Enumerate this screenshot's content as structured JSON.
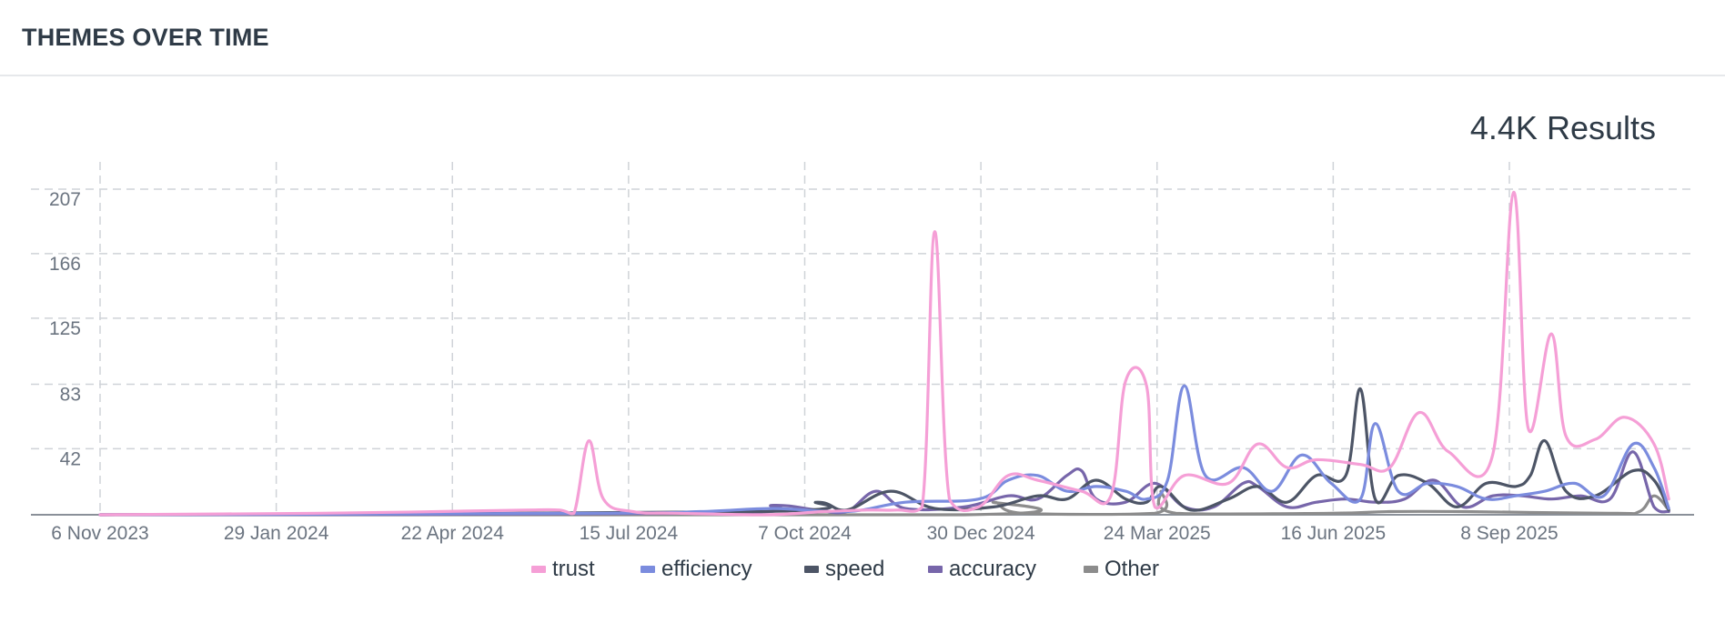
{
  "header": {
    "title": "THEMES OVER TIME"
  },
  "results": {
    "label": "4.4K Results"
  },
  "chart_data": {
    "type": "line",
    "title": "",
    "xlabel": "",
    "ylabel": "",
    "x_range": [
      "2023-10-30",
      "2025-12-15"
    ],
    "ylim": [
      0,
      207
    ],
    "y_ticks": [
      42,
      83,
      125,
      166,
      207
    ],
    "x_ticks": [
      {
        "label": "6 Nov 2023",
        "date": "2023-11-06"
      },
      {
        "label": "29 Jan 2024",
        "date": "2024-01-29"
      },
      {
        "label": "22 Apr 2024",
        "date": "2024-04-22"
      },
      {
        "label": "15 Jul 2024",
        "date": "2024-07-15"
      },
      {
        "label": "7 Oct 2024",
        "date": "2024-10-07"
      },
      {
        "label": "30 Dec 2024",
        "date": "2024-12-30"
      },
      {
        "label": "24 Mar 2025",
        "date": "2025-03-24"
      },
      {
        "label": "16 Jun 2025",
        "date": "2025-06-16"
      },
      {
        "label": "8 Sep 2025",
        "date": "2025-09-08"
      }
    ],
    "grid": true,
    "legend_position": "bottom-center",
    "series": [
      {
        "name": "trust",
        "color": "#f59fd6",
        "points": [
          [
            "2023-11-06",
            0
          ],
          [
            "2024-02-19",
            1
          ],
          [
            "2024-04-15",
            2
          ],
          [
            "2024-05-27",
            3
          ],
          [
            "2024-06-12",
            3
          ],
          [
            "2024-06-19",
            1
          ],
          [
            "2024-06-26",
            47
          ],
          [
            "2024-07-03",
            10
          ],
          [
            "2024-07-17",
            2
          ],
          [
            "2024-08-07",
            1
          ],
          [
            "2024-09-18",
            0
          ],
          [
            "2024-10-16",
            2
          ],
          [
            "2024-11-06",
            3
          ],
          [
            "2024-11-20",
            3
          ],
          [
            "2024-12-02",
            5
          ],
          [
            "2024-12-08",
            180
          ],
          [
            "2024-12-15",
            10
          ],
          [
            "2024-12-29",
            5
          ],
          [
            "2025-01-12",
            25
          ],
          [
            "2025-01-26",
            22
          ],
          [
            "2025-02-16",
            15
          ],
          [
            "2025-03-02",
            12
          ],
          [
            "2025-03-09",
            85
          ],
          [
            "2025-03-19",
            82
          ],
          [
            "2025-03-23",
            5
          ],
          [
            "2025-04-06",
            25
          ],
          [
            "2025-04-27",
            20
          ],
          [
            "2025-05-11",
            45
          ],
          [
            "2025-05-25",
            30
          ],
          [
            "2025-06-08",
            35
          ],
          [
            "2025-06-29",
            32
          ],
          [
            "2025-07-13",
            30
          ],
          [
            "2025-07-27",
            65
          ],
          [
            "2025-08-10",
            40
          ],
          [
            "2025-08-31",
            38
          ],
          [
            "2025-09-10",
            205
          ],
          [
            "2025-09-17",
            55
          ],
          [
            "2025-09-28",
            115
          ],
          [
            "2025-10-05",
            50
          ],
          [
            "2025-10-19",
            48
          ],
          [
            "2025-11-02",
            62
          ],
          [
            "2025-11-16",
            45
          ],
          [
            "2025-11-23",
            10
          ]
        ]
      },
      {
        "name": "efficiency",
        "color": "#7b8cde",
        "points": [
          [
            "2023-11-06",
            0
          ],
          [
            "2024-06-30",
            1
          ],
          [
            "2024-08-18",
            2
          ],
          [
            "2024-09-22",
            4
          ],
          [
            "2024-10-27",
            2
          ],
          [
            "2024-11-24",
            8
          ],
          [
            "2024-12-29",
            10
          ],
          [
            "2025-01-12",
            22
          ],
          [
            "2025-01-26",
            25
          ],
          [
            "2025-02-09",
            15
          ],
          [
            "2025-02-23",
            18
          ],
          [
            "2025-03-09",
            15
          ],
          [
            "2025-03-19",
            10
          ],
          [
            "2025-03-29",
            22
          ],
          [
            "2025-04-06",
            82
          ],
          [
            "2025-04-16",
            25
          ],
          [
            "2025-05-04",
            30
          ],
          [
            "2025-05-18",
            15
          ],
          [
            "2025-06-01",
            38
          ],
          [
            "2025-06-15",
            20
          ],
          [
            "2025-06-29",
            10
          ],
          [
            "2025-07-06",
            58
          ],
          [
            "2025-07-17",
            15
          ],
          [
            "2025-07-31",
            20
          ],
          [
            "2025-08-14",
            18
          ],
          [
            "2025-08-28",
            10
          ],
          [
            "2025-09-11",
            12
          ],
          [
            "2025-09-25",
            15
          ],
          [
            "2025-10-09",
            20
          ],
          [
            "2025-10-23",
            12
          ],
          [
            "2025-11-06",
            45
          ],
          [
            "2025-11-16",
            30
          ],
          [
            "2025-11-23",
            4
          ]
        ]
      },
      {
        "name": "speed",
        "color": "#4d5566",
        "points": [
          [
            "2023-11-06",
            0
          ],
          [
            "2024-09-15",
            2
          ],
          [
            "2024-10-13",
            8
          ],
          [
            "2024-10-27",
            3
          ],
          [
            "2024-11-17",
            15
          ],
          [
            "2024-12-08",
            4
          ],
          [
            "2025-01-05",
            5
          ],
          [
            "2025-01-26",
            12
          ],
          [
            "2025-02-09",
            10
          ],
          [
            "2025-02-23",
            22
          ],
          [
            "2025-03-09",
            10
          ],
          [
            "2025-03-19",
            8
          ],
          [
            "2025-03-26",
            18
          ],
          [
            "2025-04-09",
            3
          ],
          [
            "2025-04-27",
            10
          ],
          [
            "2025-05-11",
            18
          ],
          [
            "2025-05-25",
            8
          ],
          [
            "2025-06-08",
            25
          ],
          [
            "2025-06-22",
            25
          ],
          [
            "2025-06-29",
            80
          ],
          [
            "2025-07-06",
            10
          ],
          [
            "2025-07-17",
            25
          ],
          [
            "2025-07-31",
            20
          ],
          [
            "2025-08-14",
            5
          ],
          [
            "2025-08-28",
            20
          ],
          [
            "2025-09-11",
            18
          ],
          [
            "2025-09-18",
            25
          ],
          [
            "2025-09-25",
            47
          ],
          [
            "2025-10-05",
            15
          ],
          [
            "2025-10-19",
            12
          ],
          [
            "2025-11-06",
            28
          ],
          [
            "2025-11-16",
            22
          ],
          [
            "2025-11-23",
            3
          ]
        ]
      },
      {
        "name": "accuracy",
        "color": "#7766aa",
        "points": [
          [
            "2023-11-06",
            0
          ],
          [
            "2024-08-25",
            1
          ],
          [
            "2024-09-22",
            6
          ],
          [
            "2024-10-13",
            3
          ],
          [
            "2024-10-27",
            2
          ],
          [
            "2024-11-10",
            15
          ],
          [
            "2024-11-24",
            4
          ],
          [
            "2024-12-22",
            5
          ],
          [
            "2025-01-12",
            12
          ],
          [
            "2025-01-26",
            10
          ],
          [
            "2025-02-09",
            25
          ],
          [
            "2025-02-16",
            28
          ],
          [
            "2025-02-23",
            10
          ],
          [
            "2025-03-09",
            8
          ],
          [
            "2025-03-23",
            20
          ],
          [
            "2025-04-06",
            5
          ],
          [
            "2025-04-20",
            5
          ],
          [
            "2025-05-04",
            20
          ],
          [
            "2025-05-11",
            18
          ],
          [
            "2025-05-25",
            5
          ],
          [
            "2025-06-08",
            8
          ],
          [
            "2025-06-22",
            10
          ],
          [
            "2025-07-06",
            8
          ],
          [
            "2025-07-20",
            10
          ],
          [
            "2025-08-03",
            22
          ],
          [
            "2025-08-17",
            5
          ],
          [
            "2025-08-31",
            12
          ],
          [
            "2025-09-14",
            12
          ],
          [
            "2025-09-28",
            10
          ],
          [
            "2025-10-12",
            12
          ],
          [
            "2025-10-26",
            10
          ],
          [
            "2025-11-06",
            40
          ],
          [
            "2025-11-16",
            5
          ],
          [
            "2025-11-23",
            2
          ]
        ]
      },
      {
        "name": "Other",
        "color": "#8c8c8c",
        "points": [
          [
            "2023-11-06",
            0
          ],
          [
            "2024-12-22",
            0
          ],
          [
            "2025-01-05",
            8
          ],
          [
            "2025-01-19",
            1
          ],
          [
            "2025-03-23",
            1
          ],
          [
            "2025-03-26",
            15
          ],
          [
            "2025-04-02",
            1
          ],
          [
            "2025-06-15",
            1
          ],
          [
            "2025-07-13",
            2
          ],
          [
            "2025-08-17",
            2
          ],
          [
            "2025-10-26",
            1
          ],
          [
            "2025-11-09",
            2
          ],
          [
            "2025-11-16",
            12
          ],
          [
            "2025-11-23",
            3
          ]
        ]
      }
    ]
  }
}
